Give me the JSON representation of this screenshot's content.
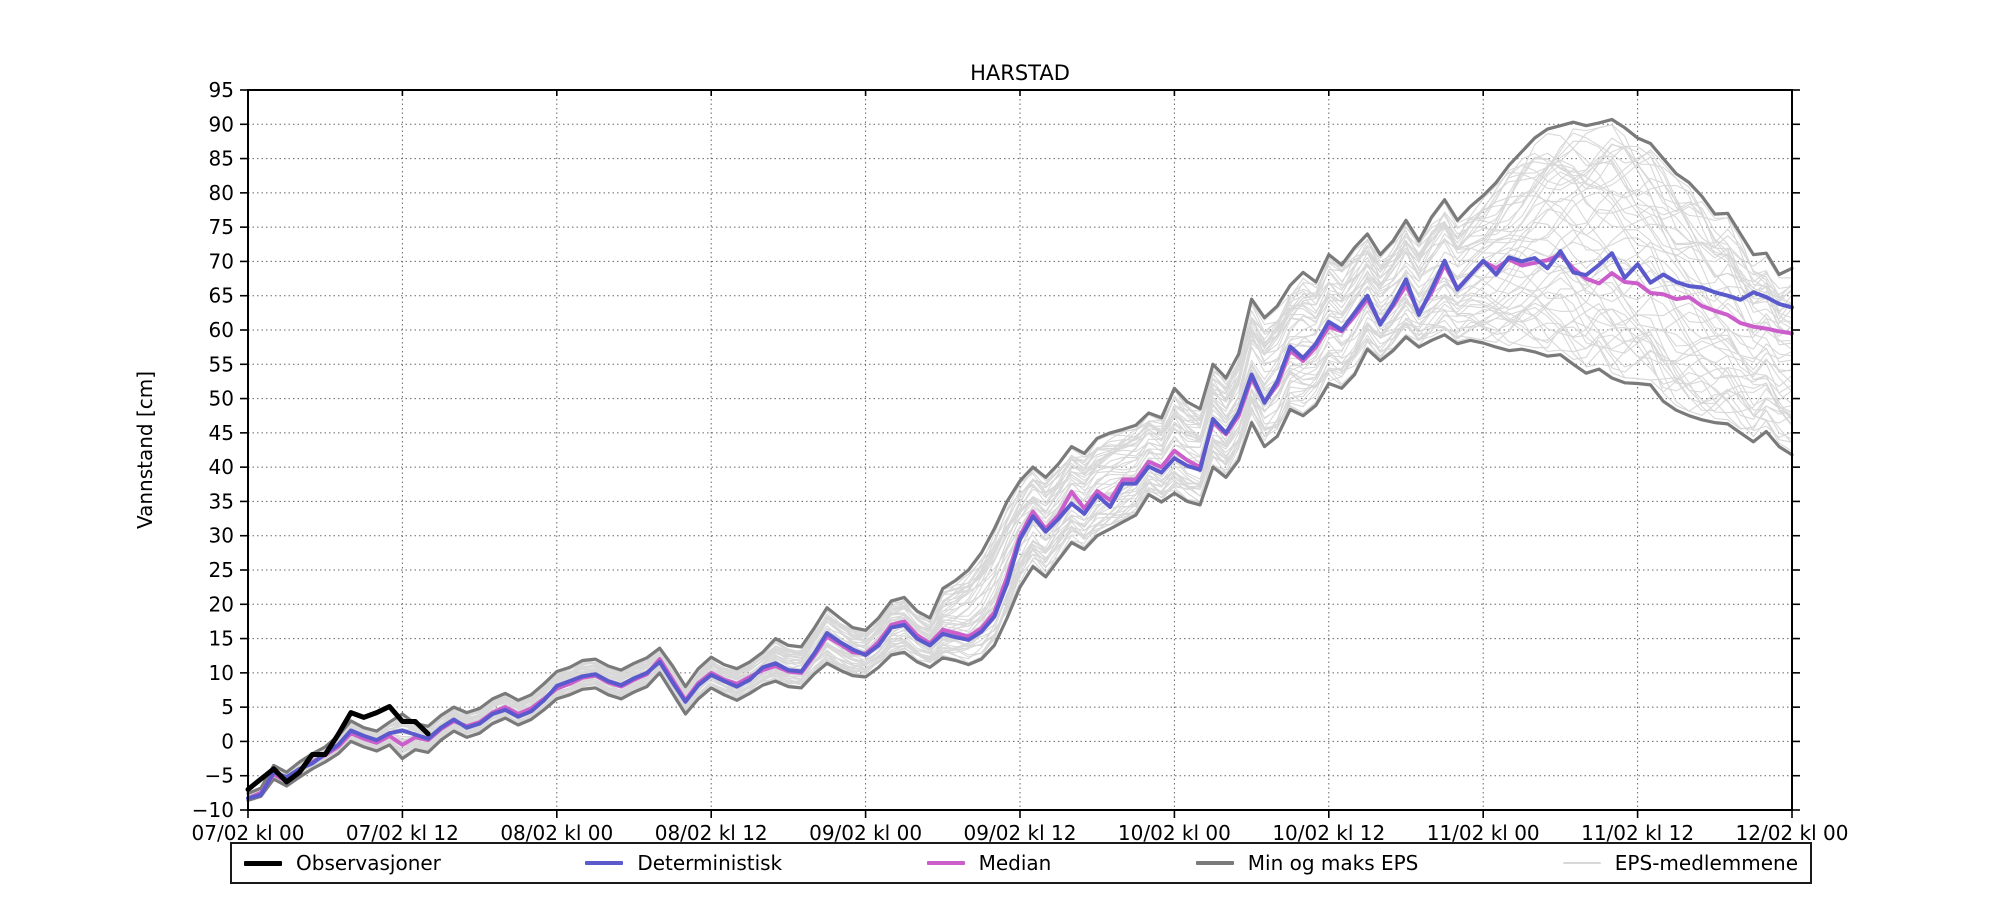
{
  "chart_data": {
    "type": "line",
    "title": "HARSTAD",
    "ylabel": "Vannstand [cm]",
    "xlabel": "",
    "grid": true,
    "ylim": [
      -10,
      95
    ],
    "y_tick_step": 5,
    "x_axis": {
      "unit": "hours since 07/02 kl 00",
      "range_hours": [
        0,
        120
      ],
      "tick_interval_hours": 12,
      "tick_labels": [
        "07/02 kl 00",
        "07/02 kl 12",
        "08/02 kl 00",
        "08/02 kl 12",
        "09/02 kl 00",
        "09/02 kl 12",
        "10/02 kl 00",
        "10/02 kl 12",
        "11/02 kl 00",
        "11/02 kl 12",
        "12/02 kl 00"
      ]
    },
    "series": [
      {
        "name": "Observasjoner",
        "color": "#000000",
        "line_width": 5,
        "x_start_hour": 0,
        "x_step_hours": 1,
        "values": [
          -7.0,
          -5.5,
          -4.0,
          -5.9,
          -4.5,
          -1.9,
          -1.9,
          1.0,
          4.2,
          3.5,
          4.2,
          5.1,
          2.9,
          2.9,
          1.1
        ]
      },
      {
        "name": "Deterministisk",
        "color": "#5a5acd",
        "line_width": 4,
        "x_start_hour": 0,
        "x_step_hours": 1,
        "values": [
          -8.3,
          -7.8,
          -4.5,
          -5.2,
          -4.0,
          -3.2,
          -1.8,
          -0.5,
          1.6,
          0.8,
          0.2,
          1.2,
          1.6,
          1.0,
          0.4,
          2.0,
          3.2,
          2.0,
          2.6,
          4.0,
          4.6,
          3.6,
          4.4,
          6.0,
          8.1,
          8.8,
          9.5,
          9.8,
          8.8,
          8.2,
          9.2,
          10.0,
          11.6,
          8.6,
          5.8,
          8.2,
          9.7,
          8.8,
          8.0,
          9.0,
          10.8,
          11.4,
          10.4,
          10.2,
          12.8,
          15.8,
          14.5,
          13.4,
          12.6,
          14.0,
          16.6,
          17.0,
          15.0,
          14.0,
          15.7,
          15.2,
          14.8,
          16.0,
          18.2,
          23.0,
          29.5,
          32.8,
          30.6,
          32.5,
          34.7,
          33.2,
          35.9,
          34.2,
          37.6,
          37.6,
          40.1,
          39.2,
          41.3,
          40.2,
          39.6,
          47.0,
          45.0,
          48.0,
          53.5,
          49.4,
          52.5,
          57.6,
          55.9,
          58.0,
          61.2,
          60.0,
          62.5,
          65.0,
          60.8,
          63.8,
          67.4,
          62.2,
          66.0,
          70.1,
          65.9,
          68.0,
          70.1,
          68.1,
          70.6,
          70.0,
          70.5,
          69.0,
          71.5,
          68.4,
          68.0,
          69.5,
          71.2,
          67.6,
          69.6,
          66.9,
          68.1,
          67.0,
          66.4,
          66.2,
          65.5,
          65.0,
          64.4,
          65.5,
          64.8,
          63.8,
          63.3
        ]
      },
      {
        "name": "Median",
        "color": "#cc5ecc",
        "line_width": 4,
        "x_start_hour": 0,
        "x_step_hours": 1,
        "values": [
          -8.3,
          -7.5,
          -4.8,
          -5.8,
          -4.2,
          -3.0,
          -2.0,
          -0.8,
          1.2,
          0.4,
          -0.2,
          0.8,
          -0.5,
          0.6,
          0.2,
          1.8,
          3.0,
          2.2,
          2.8,
          4.2,
          5.0,
          4.0,
          4.8,
          6.2,
          7.7,
          8.4,
          9.3,
          9.6,
          8.6,
          8.0,
          9.0,
          9.8,
          12.0,
          9.0,
          6.0,
          8.5,
          10.0,
          9.0,
          8.4,
          9.4,
          10.4,
          11.0,
          10.2,
          10.0,
          12.5,
          15.3,
          14.2,
          13.0,
          12.8,
          14.5,
          17.0,
          17.5,
          15.5,
          14.3,
          16.3,
          15.8,
          15.3,
          16.5,
          18.8,
          24.0,
          30.0,
          33.5,
          31.0,
          33.0,
          36.4,
          34.0,
          36.5,
          35.2,
          38.2,
          38.2,
          40.8,
          40.0,
          42.4,
          41.0,
          40.0,
          46.5,
          44.8,
          47.5,
          53.0,
          49.5,
          52.0,
          57.0,
          55.5,
          57.5,
          60.5,
          59.8,
          62.0,
          64.5,
          61.0,
          63.5,
          66.5,
          62.5,
          65.5,
          69.5,
          66.0,
          68.0,
          70.0,
          69.0,
          70.3,
          69.4,
          69.8,
          70.2,
          71.0,
          69.0,
          67.5,
          66.8,
          68.3,
          67.0,
          66.8,
          65.4,
          65.2,
          64.5,
          64.8,
          63.5,
          62.8,
          62.2,
          61.0,
          60.5,
          60.2,
          59.8,
          59.5
        ]
      },
      {
        "name": "Min EPS",
        "color": "#7a7a7a",
        "line_width": 3.2,
        "x_start_hour": 0,
        "x_step_hours": 1,
        "values": [
          -8.6,
          -8.0,
          -5.5,
          -6.5,
          -5.2,
          -4.0,
          -3.0,
          -1.8,
          0.0,
          -0.8,
          -1.4,
          -0.5,
          -2.5,
          -1.2,
          -1.6,
          0.2,
          1.5,
          0.6,
          1.2,
          2.6,
          3.4,
          2.4,
          3.2,
          4.6,
          6.2,
          6.8,
          7.6,
          7.8,
          6.8,
          6.2,
          7.2,
          8.0,
          10.0,
          7.0,
          4.0,
          6.2,
          7.8,
          6.8,
          6.0,
          7.0,
          8.2,
          8.8,
          8.0,
          7.8,
          9.8,
          11.4,
          10.4,
          9.6,
          9.4,
          10.8,
          12.6,
          13.0,
          11.6,
          10.8,
          12.2,
          11.8,
          11.2,
          12.0,
          14.0,
          18.0,
          22.5,
          25.5,
          24.0,
          26.5,
          29.0,
          28.0,
          30.0,
          31.0,
          32.0,
          33.0,
          36.0,
          34.9,
          36.2,
          35.0,
          34.5,
          40.0,
          38.5,
          41.0,
          46.5,
          43.0,
          44.5,
          48.4,
          47.5,
          49.0,
          52.2,
          51.5,
          53.5,
          57.2,
          55.5,
          57.0,
          59.0,
          57.5,
          58.5,
          59.3,
          58.0,
          58.5,
          58.1,
          57.5,
          57.0,
          57.2,
          56.8,
          56.2,
          56.4,
          55.0,
          53.7,
          54.3,
          53.0,
          52.3,
          52.2,
          52.0,
          49.6,
          48.3,
          47.5,
          46.9,
          46.5,
          46.3,
          45.0,
          43.7,
          45.2,
          43.0,
          41.8
        ]
      },
      {
        "name": "Maks EPS",
        "color": "#7a7a7a",
        "line_width": 3.2,
        "x_start_hour": 0,
        "x_step_hours": 1,
        "values": [
          -7.6,
          -6.8,
          -3.5,
          -4.5,
          -3.0,
          -1.8,
          -0.8,
          0.8,
          3.0,
          2.0,
          1.5,
          2.8,
          4.0,
          2.6,
          2.2,
          3.8,
          5.0,
          4.2,
          4.8,
          6.2,
          7.0,
          6.0,
          6.8,
          8.4,
          10.2,
          10.8,
          11.8,
          12.0,
          11.0,
          10.4,
          11.4,
          12.2,
          13.6,
          11.0,
          8.0,
          10.6,
          12.3,
          11.2,
          10.6,
          11.6,
          13.0,
          15.0,
          14.0,
          13.8,
          16.5,
          19.5,
          18.0,
          16.6,
          16.2,
          18.0,
          20.5,
          21.0,
          19.0,
          18.0,
          22.3,
          23.5,
          25.0,
          27.5,
          31.0,
          35.0,
          38.0,
          40.0,
          38.5,
          40.5,
          43.0,
          42.0,
          44.2,
          45.0,
          45.5,
          46.1,
          47.9,
          47.2,
          51.5,
          49.5,
          48.5,
          55.0,
          53.0,
          56.5,
          64.5,
          61.8,
          63.5,
          66.5,
          68.4,
          67.0,
          71.0,
          69.5,
          72.0,
          74.0,
          71.0,
          73.0,
          76.0,
          73.0,
          76.5,
          79.0,
          76.0,
          78.0,
          79.6,
          81.5,
          84.0,
          86.0,
          88.0,
          89.3,
          89.8,
          90.3,
          89.8,
          90.2,
          90.7,
          89.5,
          88.0,
          87.2,
          85.0,
          82.8,
          81.5,
          79.5,
          76.9,
          77.0,
          74.0,
          71.0,
          71.2,
          68.1,
          69.0
        ]
      }
    ],
    "eps_members": {
      "name": "EPS-medlemmene",
      "color": "#d8d8d8",
      "line_width": 1.1,
      "count": 51,
      "note": "ensemble member traces fill the band between Min EPS and Maks EPS"
    },
    "legend_position": "bottom"
  },
  "legend": {
    "items": [
      {
        "label": "Observasjoner",
        "color": "#000000",
        "line_width": 5
      },
      {
        "label": "Deterministisk",
        "color": "#5a5acd",
        "line_width": 4
      },
      {
        "label": "Median",
        "color": "#cc5ecc",
        "line_width": 4
      },
      {
        "label": "Min og maks EPS",
        "color": "#7a7a7a",
        "line_width": 3.2
      },
      {
        "label": "EPS-medlemmene",
        "color": "#d8d8d8",
        "line_width": 1.5
      }
    ]
  },
  "colors": {
    "grid": "#666666",
    "axis": "#000000",
    "background": "#ffffff"
  }
}
